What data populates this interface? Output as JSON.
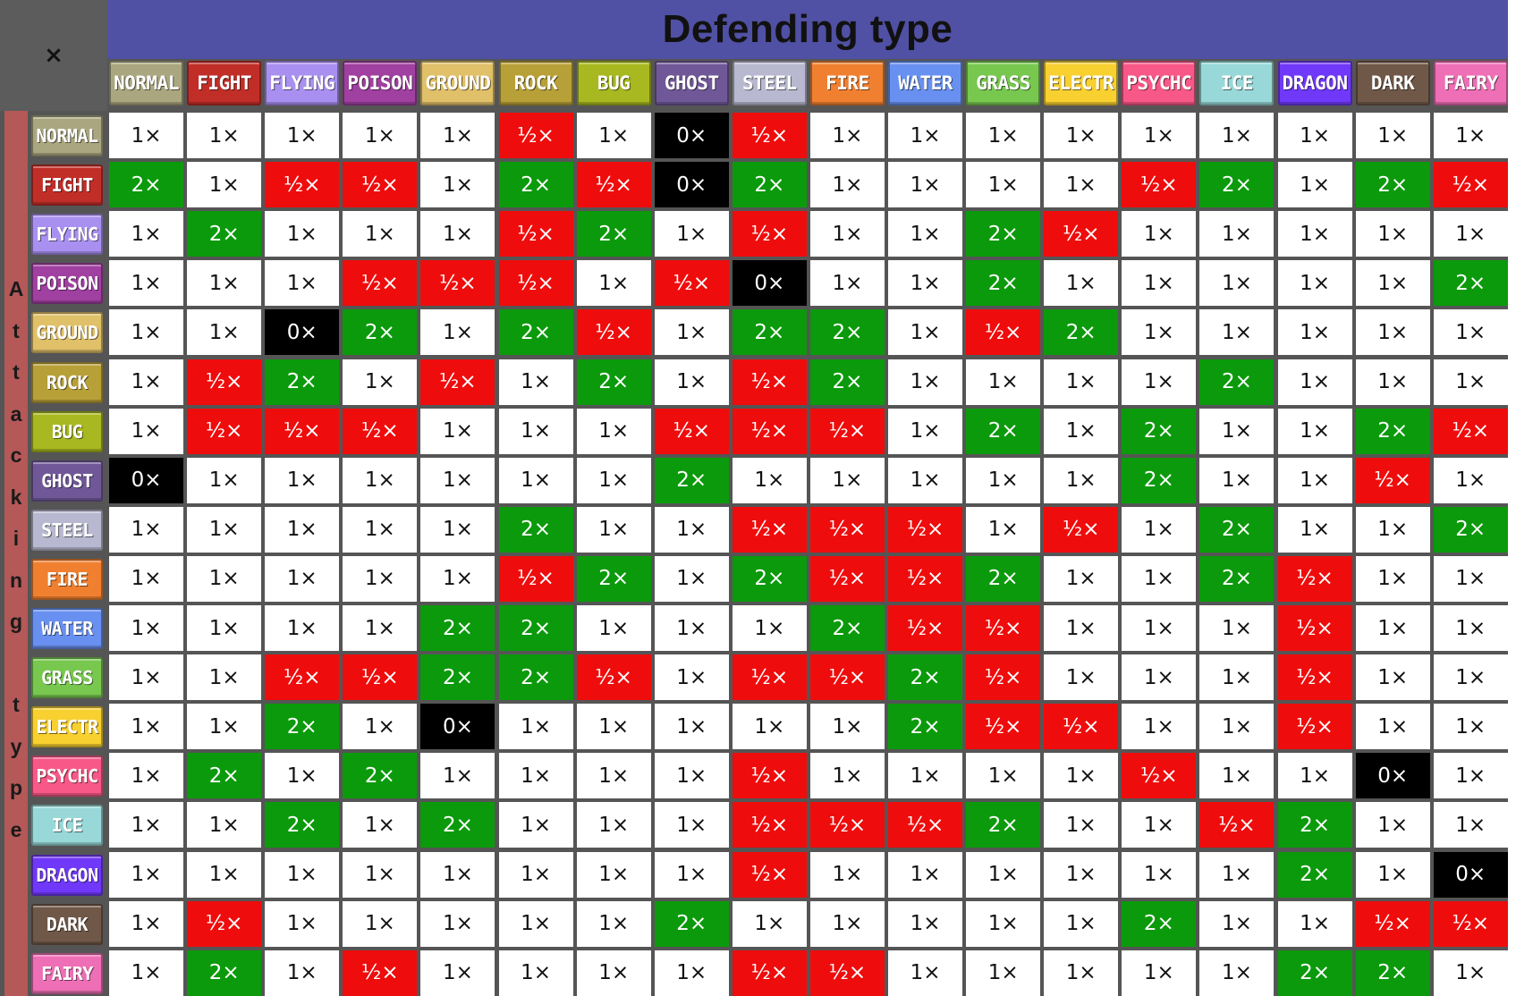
{
  "corner_label": "×",
  "title": "Defending type",
  "attacking_label": [
    "A",
    "t",
    "t",
    "a",
    "c",
    "k",
    "i",
    "n",
    "g",
    "",
    "t",
    "y",
    "p",
    "e"
  ],
  "types": [
    {
      "label": "NORMAL",
      "color": "#aaa67f"
    },
    {
      "label": "FIGHT",
      "color": "#c12e28"
    },
    {
      "label": "FLYING",
      "color": "#a990f0"
    },
    {
      "label": "POISON",
      "color": "#a040a0"
    },
    {
      "label": "GROUND",
      "color": "#e0c068"
    },
    {
      "label": "ROCK",
      "color": "#b8a038"
    },
    {
      "label": "BUG",
      "color": "#a8b820"
    },
    {
      "label": "GHOST",
      "color": "#705898"
    },
    {
      "label": "STEEL",
      "color": "#b8b8d0"
    },
    {
      "label": "FIRE",
      "color": "#f08030"
    },
    {
      "label": "WATER",
      "color": "#6890f0"
    },
    {
      "label": "GRASS",
      "color": "#78c850"
    },
    {
      "label": "ELECTR",
      "color": "#f8d030"
    },
    {
      "label": "PSYCHC",
      "color": "#f85888"
    },
    {
      "label": "ICE",
      "color": "#98d8d8"
    },
    {
      "label": "DRAGON",
      "color": "#7038f8"
    },
    {
      "label": "DARK",
      "color": "#705848"
    },
    {
      "label": "FAIRY",
      "color": "#ee6fb5"
    }
  ],
  "matrix": [
    [
      "1×",
      "1×",
      "1×",
      "1×",
      "1×",
      "½×",
      "1×",
      "0×",
      "½×",
      "1×",
      "1×",
      "1×",
      "1×",
      "1×",
      "1×",
      "1×",
      "1×",
      "1×"
    ],
    [
      "2×",
      "1×",
      "½×",
      "½×",
      "1×",
      "2×",
      "½×",
      "0×",
      "2×",
      "1×",
      "1×",
      "1×",
      "1×",
      "½×",
      "2×",
      "1×",
      "2×",
      "½×"
    ],
    [
      "1×",
      "2×",
      "1×",
      "1×",
      "1×",
      "½×",
      "2×",
      "1×",
      "½×",
      "1×",
      "1×",
      "2×",
      "½×",
      "1×",
      "1×",
      "1×",
      "1×",
      "1×"
    ],
    [
      "1×",
      "1×",
      "1×",
      "½×",
      "½×",
      "½×",
      "1×",
      "½×",
      "0×",
      "1×",
      "1×",
      "2×",
      "1×",
      "1×",
      "1×",
      "1×",
      "1×",
      "2×"
    ],
    [
      "1×",
      "1×",
      "0×",
      "2×",
      "1×",
      "2×",
      "½×",
      "1×",
      "2×",
      "2×",
      "1×",
      "½×",
      "2×",
      "1×",
      "1×",
      "1×",
      "1×",
      "1×"
    ],
    [
      "1×",
      "½×",
      "2×",
      "1×",
      "½×",
      "1×",
      "2×",
      "1×",
      "½×",
      "2×",
      "1×",
      "1×",
      "1×",
      "1×",
      "2×",
      "1×",
      "1×",
      "1×"
    ],
    [
      "1×",
      "½×",
      "½×",
      "½×",
      "1×",
      "1×",
      "1×",
      "½×",
      "½×",
      "½×",
      "1×",
      "2×",
      "1×",
      "2×",
      "1×",
      "1×",
      "2×",
      "½×"
    ],
    [
      "0×",
      "1×",
      "1×",
      "1×",
      "1×",
      "1×",
      "1×",
      "2×",
      "1×",
      "1×",
      "1×",
      "1×",
      "1×",
      "2×",
      "1×",
      "1×",
      "½×",
      "1×"
    ],
    [
      "1×",
      "1×",
      "1×",
      "1×",
      "1×",
      "2×",
      "1×",
      "1×",
      "½×",
      "½×",
      "½×",
      "1×",
      "½×",
      "1×",
      "2×",
      "1×",
      "1×",
      "2×"
    ],
    [
      "1×",
      "1×",
      "1×",
      "1×",
      "1×",
      "½×",
      "2×",
      "1×",
      "2×",
      "½×",
      "½×",
      "2×",
      "1×",
      "1×",
      "2×",
      "½×",
      "1×",
      "1×"
    ],
    [
      "1×",
      "1×",
      "1×",
      "1×",
      "2×",
      "2×",
      "1×",
      "1×",
      "1×",
      "2×",
      "½×",
      "½×",
      "1×",
      "1×",
      "1×",
      "½×",
      "1×",
      "1×"
    ],
    [
      "1×",
      "1×",
      "½×",
      "½×",
      "2×",
      "2×",
      "½×",
      "1×",
      "½×",
      "½×",
      "2×",
      "½×",
      "1×",
      "1×",
      "1×",
      "½×",
      "1×",
      "1×"
    ],
    [
      "1×",
      "1×",
      "2×",
      "1×",
      "0×",
      "1×",
      "1×",
      "1×",
      "1×",
      "1×",
      "2×",
      "½×",
      "½×",
      "1×",
      "1×",
      "½×",
      "1×",
      "1×"
    ],
    [
      "1×",
      "2×",
      "1×",
      "2×",
      "1×",
      "1×",
      "1×",
      "1×",
      "½×",
      "1×",
      "1×",
      "1×",
      "1×",
      "½×",
      "1×",
      "1×",
      "0×",
      "1×"
    ],
    [
      "1×",
      "1×",
      "2×",
      "1×",
      "2×",
      "1×",
      "1×",
      "1×",
      "½×",
      "½×",
      "½×",
      "2×",
      "1×",
      "1×",
      "½×",
      "2×",
      "1×",
      "1×"
    ],
    [
      "1×",
      "1×",
      "1×",
      "1×",
      "1×",
      "1×",
      "1×",
      "1×",
      "½×",
      "1×",
      "1×",
      "1×",
      "1×",
      "1×",
      "1×",
      "2×",
      "1×",
      "0×"
    ],
    [
      "1×",
      "½×",
      "1×",
      "1×",
      "1×",
      "1×",
      "1×",
      "2×",
      "1×",
      "1×",
      "1×",
      "1×",
      "1×",
      "2×",
      "1×",
      "1×",
      "½×",
      "½×"
    ],
    [
      "1×",
      "2×",
      "1×",
      "½×",
      "1×",
      "1×",
      "1×",
      "1×",
      "½×",
      "½×",
      "1×",
      "1×",
      "1×",
      "1×",
      "1×",
      "2×",
      "2×",
      "1×"
    ]
  ]
}
